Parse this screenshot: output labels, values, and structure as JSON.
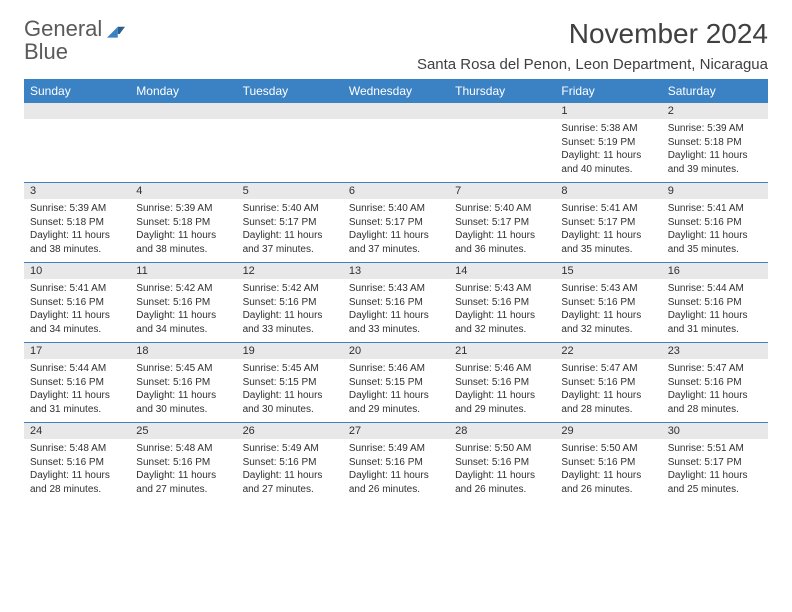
{
  "logo": {
    "word1": "General",
    "word2": "Blue"
  },
  "title": "November 2024",
  "location": "Santa Rosa del Penon, Leon Department, Nicaragua",
  "colors": {
    "header_bg": "#3b82c4",
    "header_text": "#ffffff",
    "daynum_bg": "#e8e8e8",
    "text": "#303030",
    "row_border": "#3b82c4",
    "page_bg": "#ffffff",
    "logo_gray": "#5a5a5a",
    "logo_blue": "#3b82c4"
  },
  "day_headers": [
    "Sunday",
    "Monday",
    "Tuesday",
    "Wednesday",
    "Thursday",
    "Friday",
    "Saturday"
  ],
  "weeks": [
    [
      null,
      null,
      null,
      null,
      null,
      {
        "n": "1",
        "sr": "5:38 AM",
        "ss": "5:19 PM",
        "dl": "11 hours and 40 minutes."
      },
      {
        "n": "2",
        "sr": "5:39 AM",
        "ss": "5:18 PM",
        "dl": "11 hours and 39 minutes."
      }
    ],
    [
      {
        "n": "3",
        "sr": "5:39 AM",
        "ss": "5:18 PM",
        "dl": "11 hours and 38 minutes."
      },
      {
        "n": "4",
        "sr": "5:39 AM",
        "ss": "5:18 PM",
        "dl": "11 hours and 38 minutes."
      },
      {
        "n": "5",
        "sr": "5:40 AM",
        "ss": "5:17 PM",
        "dl": "11 hours and 37 minutes."
      },
      {
        "n": "6",
        "sr": "5:40 AM",
        "ss": "5:17 PM",
        "dl": "11 hours and 37 minutes."
      },
      {
        "n": "7",
        "sr": "5:40 AM",
        "ss": "5:17 PM",
        "dl": "11 hours and 36 minutes."
      },
      {
        "n": "8",
        "sr": "5:41 AM",
        "ss": "5:17 PM",
        "dl": "11 hours and 35 minutes."
      },
      {
        "n": "9",
        "sr": "5:41 AM",
        "ss": "5:16 PM",
        "dl": "11 hours and 35 minutes."
      }
    ],
    [
      {
        "n": "10",
        "sr": "5:41 AM",
        "ss": "5:16 PM",
        "dl": "11 hours and 34 minutes."
      },
      {
        "n": "11",
        "sr": "5:42 AM",
        "ss": "5:16 PM",
        "dl": "11 hours and 34 minutes."
      },
      {
        "n": "12",
        "sr": "5:42 AM",
        "ss": "5:16 PM",
        "dl": "11 hours and 33 minutes."
      },
      {
        "n": "13",
        "sr": "5:43 AM",
        "ss": "5:16 PM",
        "dl": "11 hours and 33 minutes."
      },
      {
        "n": "14",
        "sr": "5:43 AM",
        "ss": "5:16 PM",
        "dl": "11 hours and 32 minutes."
      },
      {
        "n": "15",
        "sr": "5:43 AM",
        "ss": "5:16 PM",
        "dl": "11 hours and 32 minutes."
      },
      {
        "n": "16",
        "sr": "5:44 AM",
        "ss": "5:16 PM",
        "dl": "11 hours and 31 minutes."
      }
    ],
    [
      {
        "n": "17",
        "sr": "5:44 AM",
        "ss": "5:16 PM",
        "dl": "11 hours and 31 minutes."
      },
      {
        "n": "18",
        "sr": "5:45 AM",
        "ss": "5:16 PM",
        "dl": "11 hours and 30 minutes."
      },
      {
        "n": "19",
        "sr": "5:45 AM",
        "ss": "5:15 PM",
        "dl": "11 hours and 30 minutes."
      },
      {
        "n": "20",
        "sr": "5:46 AM",
        "ss": "5:15 PM",
        "dl": "11 hours and 29 minutes."
      },
      {
        "n": "21",
        "sr": "5:46 AM",
        "ss": "5:16 PM",
        "dl": "11 hours and 29 minutes."
      },
      {
        "n": "22",
        "sr": "5:47 AM",
        "ss": "5:16 PM",
        "dl": "11 hours and 28 minutes."
      },
      {
        "n": "23",
        "sr": "5:47 AM",
        "ss": "5:16 PM",
        "dl": "11 hours and 28 minutes."
      }
    ],
    [
      {
        "n": "24",
        "sr": "5:48 AM",
        "ss": "5:16 PM",
        "dl": "11 hours and 28 minutes."
      },
      {
        "n": "25",
        "sr": "5:48 AM",
        "ss": "5:16 PM",
        "dl": "11 hours and 27 minutes."
      },
      {
        "n": "26",
        "sr": "5:49 AM",
        "ss": "5:16 PM",
        "dl": "11 hours and 27 minutes."
      },
      {
        "n": "27",
        "sr": "5:49 AM",
        "ss": "5:16 PM",
        "dl": "11 hours and 26 minutes."
      },
      {
        "n": "28",
        "sr": "5:50 AM",
        "ss": "5:16 PM",
        "dl": "11 hours and 26 minutes."
      },
      {
        "n": "29",
        "sr": "5:50 AM",
        "ss": "5:16 PM",
        "dl": "11 hours and 26 minutes."
      },
      {
        "n": "30",
        "sr": "5:51 AM",
        "ss": "5:17 PM",
        "dl": "11 hours and 25 minutes."
      }
    ]
  ],
  "labels": {
    "sunrise": "Sunrise:",
    "sunset": "Sunset:",
    "daylight": "Daylight:"
  },
  "fonts": {
    "title_pt": 28,
    "location_pt": 15,
    "header_pt": 12,
    "daynum_pt": 11,
    "body_pt": 10
  }
}
